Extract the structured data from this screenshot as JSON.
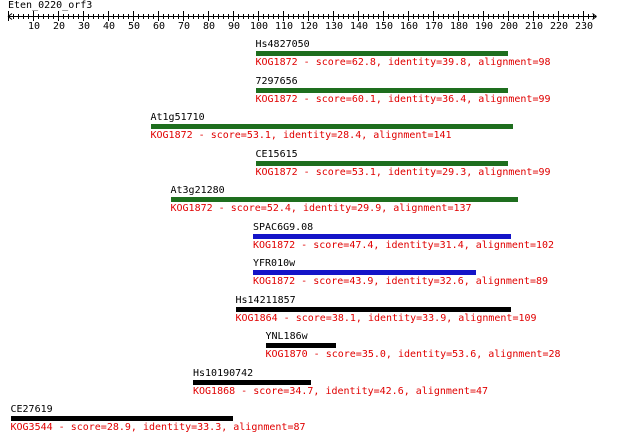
{
  "query": {
    "name": "Eten_0220_orf3",
    "length_max": 235
  },
  "ruler": {
    "ticks": [
      10,
      20,
      30,
      40,
      50,
      60,
      70,
      80,
      90,
      100,
      110,
      120,
      130,
      140,
      150,
      160,
      170,
      180,
      190,
      200,
      210,
      220,
      230
    ]
  },
  "colors": {
    "green": "#1e6e1e",
    "blue": "#1414c8",
    "black": "#000000",
    "desc": "#e00000"
  },
  "hits": [
    {
      "name": "Hs4827050",
      "desc": "KOG1872 - score=62.8, identity=39.8, alignment=98",
      "start": 99,
      "end": 199,
      "color": "green"
    },
    {
      "name": "7297656",
      "desc": "KOG1872 - score=60.1, identity=36.4, alignment=99",
      "start": 99,
      "end": 199,
      "color": "green"
    },
    {
      "name": "At1g51710",
      "desc": "KOG1872 - score=53.1, identity=28.4, alignment=141",
      "start": 57,
      "end": 201,
      "color": "green"
    },
    {
      "name": "CE15615",
      "desc": "KOG1872 - score=53.1, identity=29.3, alignment=99",
      "start": 99,
      "end": 199,
      "color": "green"
    },
    {
      "name": "At3g21280",
      "desc": "KOG1872 - score=52.4, identity=29.9, alignment=137",
      "start": 65,
      "end": 203,
      "color": "green"
    },
    {
      "name": "SPAC6G9.08",
      "desc": "KOG1872 - score=47.4, identity=31.4, alignment=102",
      "start": 98,
      "end": 200,
      "color": "blue"
    },
    {
      "name": "YFR010w",
      "desc": "KOG1872 - score=43.9, identity=32.6, alignment=89",
      "start": 98,
      "end": 186,
      "color": "blue"
    },
    {
      "name": "Hs14211857",
      "desc": "KOG1864 - score=38.1, identity=33.9, alignment=109",
      "start": 91,
      "end": 200,
      "color": "black"
    },
    {
      "name": "YNL186w",
      "desc": "KOG1870 - score=35.0, identity=53.6, alignment=28",
      "start": 103,
      "end": 130,
      "color": "black"
    },
    {
      "name": "Hs10190742",
      "desc": "KOG1868 - score=34.7, identity=42.6, alignment=47",
      "start": 74,
      "end": 120,
      "color": "black"
    },
    {
      "name": "CE27619",
      "desc": "KOG3544 - score=28.9, identity=33.3, alignment=87",
      "start": 1,
      "end": 89,
      "color": "black"
    }
  ]
}
